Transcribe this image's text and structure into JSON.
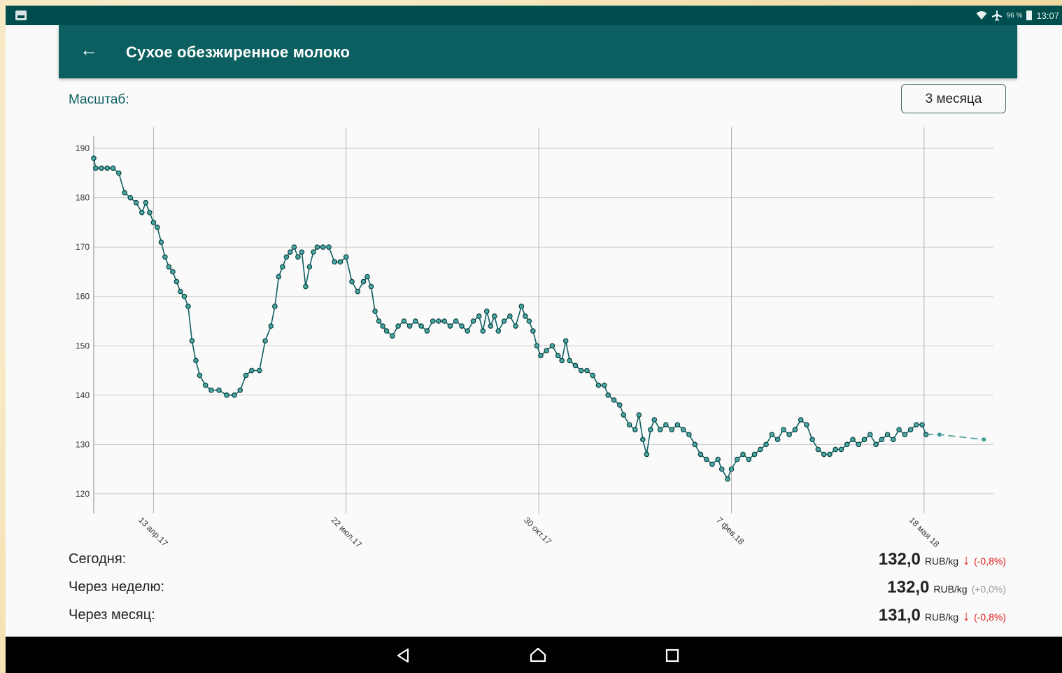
{
  "status_bar": {
    "battery_percent": "96 %",
    "time": "13:07",
    "icons": [
      "notification-icon",
      "wifi-icon",
      "airplane-icon",
      "battery-icon"
    ]
  },
  "app_bar": {
    "title": "Сухое обезжиренное молоко",
    "back_icon": "arrow-left-icon"
  },
  "scale": {
    "label": "Масштаб:",
    "selected": "3 месяца"
  },
  "chart_data": {
    "type": "line",
    "ylim": [
      118,
      192
    ],
    "yticks": [
      120,
      130,
      140,
      150,
      160,
      170,
      180,
      190
    ],
    "xticks": [
      {
        "label": "13 апр.17",
        "date": "2017-04-13"
      },
      {
        "label": "22 июл.17",
        "date": "2017-07-22"
      },
      {
        "label": "30 окт.17",
        "date": "2017-10-30"
      },
      {
        "label": "7 фев.18",
        "date": "2018-02-07"
      },
      {
        "label": "18 мая 18",
        "date": "2018-05-18"
      }
    ],
    "xlim": [
      "2017-03-13",
      "2018-06-23"
    ],
    "grid": true,
    "colors": {
      "line": "#0e5f60",
      "marker_fill": "#4aa9a4",
      "forecast": "#3c9c98"
    },
    "series": [
      {
        "points": [
          [
            "2017-03-13",
            188
          ],
          [
            "2017-03-14",
            186
          ],
          [
            "2017-03-17",
            186
          ],
          [
            "2017-03-20",
            186
          ],
          [
            "2017-03-23",
            186
          ],
          [
            "2017-03-26",
            185
          ],
          [
            "2017-03-29",
            181
          ],
          [
            "2017-04-01",
            180
          ],
          [
            "2017-04-04",
            179
          ],
          [
            "2017-04-07",
            177
          ],
          [
            "2017-04-09",
            179
          ],
          [
            "2017-04-11",
            177
          ],
          [
            "2017-04-13",
            175
          ],
          [
            "2017-04-15",
            174
          ],
          [
            "2017-04-17",
            171
          ],
          [
            "2017-04-19",
            168
          ],
          [
            "2017-04-21",
            166
          ],
          [
            "2017-04-23",
            165
          ],
          [
            "2017-04-25",
            163
          ],
          [
            "2017-04-27",
            161
          ],
          [
            "2017-04-29",
            160
          ],
          [
            "2017-05-01",
            158
          ],
          [
            "2017-05-03",
            151
          ],
          [
            "2017-05-05",
            147
          ],
          [
            "2017-05-07",
            144
          ],
          [
            "2017-05-10",
            142
          ],
          [
            "2017-05-13",
            141
          ],
          [
            "2017-05-17",
            141
          ],
          [
            "2017-05-21",
            140
          ],
          [
            "2017-05-25",
            140
          ],
          [
            "2017-05-28",
            141
          ],
          [
            "2017-05-31",
            144
          ],
          [
            "2017-06-03",
            145
          ],
          [
            "2017-06-07",
            145
          ],
          [
            "2017-06-10",
            151
          ],
          [
            "2017-06-13",
            154
          ],
          [
            "2017-06-15",
            158
          ],
          [
            "2017-06-17",
            164
          ],
          [
            "2017-06-19",
            166
          ],
          [
            "2017-06-21",
            168
          ],
          [
            "2017-06-23",
            169
          ],
          [
            "2017-06-25",
            170
          ],
          [
            "2017-06-27",
            168
          ],
          [
            "2017-06-29",
            169
          ],
          [
            "2017-07-01",
            162
          ],
          [
            "2017-07-03",
            166
          ],
          [
            "2017-07-05",
            169
          ],
          [
            "2017-07-07",
            170
          ],
          [
            "2017-07-10",
            170
          ],
          [
            "2017-07-13",
            170
          ],
          [
            "2017-07-16",
            167
          ],
          [
            "2017-07-19",
            167
          ],
          [
            "2017-07-22",
            168
          ],
          [
            "2017-07-25",
            163
          ],
          [
            "2017-07-28",
            161
          ],
          [
            "2017-07-31",
            163
          ],
          [
            "2017-08-02",
            164
          ],
          [
            "2017-08-04",
            162
          ],
          [
            "2017-08-06",
            157
          ],
          [
            "2017-08-08",
            155
          ],
          [
            "2017-08-10",
            154
          ],
          [
            "2017-08-12",
            153
          ],
          [
            "2017-08-15",
            152
          ],
          [
            "2017-08-18",
            154
          ],
          [
            "2017-08-21",
            155
          ],
          [
            "2017-08-24",
            154
          ],
          [
            "2017-08-27",
            155
          ],
          [
            "2017-08-30",
            154
          ],
          [
            "2017-09-02",
            153
          ],
          [
            "2017-09-05",
            155
          ],
          [
            "2017-09-08",
            155
          ],
          [
            "2017-09-11",
            155
          ],
          [
            "2017-09-14",
            154
          ],
          [
            "2017-09-17",
            155
          ],
          [
            "2017-09-20",
            154
          ],
          [
            "2017-09-23",
            153
          ],
          [
            "2017-09-26",
            155
          ],
          [
            "2017-09-29",
            156
          ],
          [
            "2017-10-01",
            153
          ],
          [
            "2017-10-03",
            157
          ],
          [
            "2017-10-05",
            154
          ],
          [
            "2017-10-07",
            156
          ],
          [
            "2017-10-09",
            153
          ],
          [
            "2017-10-12",
            155
          ],
          [
            "2017-10-15",
            156
          ],
          [
            "2017-10-18",
            154
          ],
          [
            "2017-10-21",
            158
          ],
          [
            "2017-10-23",
            156
          ],
          [
            "2017-10-25",
            155
          ],
          [
            "2017-10-27",
            153
          ],
          [
            "2017-10-29",
            150
          ],
          [
            "2017-10-31",
            148
          ],
          [
            "2017-11-03",
            149
          ],
          [
            "2017-11-06",
            150
          ],
          [
            "2017-11-09",
            148
          ],
          [
            "2017-11-11",
            147
          ],
          [
            "2017-11-13",
            151
          ],
          [
            "2017-11-15",
            147
          ],
          [
            "2017-11-18",
            146
          ],
          [
            "2017-11-21",
            145
          ],
          [
            "2017-11-24",
            145
          ],
          [
            "2017-11-27",
            144
          ],
          [
            "2017-11-30",
            142
          ],
          [
            "2017-12-03",
            142
          ],
          [
            "2017-12-05",
            140
          ],
          [
            "2017-12-08",
            139
          ],
          [
            "2017-12-11",
            138
          ],
          [
            "2017-12-13",
            136
          ],
          [
            "2017-12-16",
            134
          ],
          [
            "2017-12-19",
            133
          ],
          [
            "2017-12-21",
            136
          ],
          [
            "2017-12-23",
            131
          ],
          [
            "2017-12-25",
            128
          ],
          [
            "2017-12-27",
            133
          ],
          [
            "2017-12-29",
            135
          ],
          [
            "2018-01-01",
            133
          ],
          [
            "2018-01-04",
            134
          ],
          [
            "2018-01-07",
            133
          ],
          [
            "2018-01-10",
            134
          ],
          [
            "2018-01-13",
            133
          ],
          [
            "2018-01-16",
            132
          ],
          [
            "2018-01-19",
            130
          ],
          [
            "2018-01-22",
            128
          ],
          [
            "2018-01-25",
            127
          ],
          [
            "2018-01-28",
            126
          ],
          [
            "2018-01-31",
            127
          ],
          [
            "2018-02-02",
            125
          ],
          [
            "2018-02-05",
            123
          ],
          [
            "2018-02-07",
            125
          ],
          [
            "2018-02-10",
            127
          ],
          [
            "2018-02-13",
            128
          ],
          [
            "2018-02-16",
            127
          ],
          [
            "2018-02-19",
            128
          ],
          [
            "2018-02-22",
            129
          ],
          [
            "2018-02-25",
            130
          ],
          [
            "2018-02-28",
            132
          ],
          [
            "2018-03-03",
            131
          ],
          [
            "2018-03-06",
            133
          ],
          [
            "2018-03-09",
            132
          ],
          [
            "2018-03-12",
            133
          ],
          [
            "2018-03-15",
            135
          ],
          [
            "2018-03-18",
            134
          ],
          [
            "2018-03-21",
            131
          ],
          [
            "2018-03-24",
            129
          ],
          [
            "2018-03-27",
            128
          ],
          [
            "2018-03-30",
            128
          ],
          [
            "2018-04-02",
            129
          ],
          [
            "2018-04-05",
            129
          ],
          [
            "2018-04-08",
            130
          ],
          [
            "2018-04-11",
            131
          ],
          [
            "2018-04-14",
            130
          ],
          [
            "2018-04-17",
            131
          ],
          [
            "2018-04-20",
            132
          ],
          [
            "2018-04-23",
            130
          ],
          [
            "2018-04-26",
            131
          ],
          [
            "2018-04-29",
            132
          ],
          [
            "2018-05-02",
            131
          ],
          [
            "2018-05-05",
            133
          ],
          [
            "2018-05-08",
            132
          ],
          [
            "2018-05-11",
            133
          ],
          [
            "2018-05-14",
            134
          ],
          [
            "2018-05-17",
            134
          ],
          [
            "2018-05-19",
            132
          ]
        ]
      },
      {
        "name": "forecast",
        "dashed": true,
        "points": [
          [
            "2018-05-19",
            132
          ],
          [
            "2018-05-26",
            132
          ],
          [
            "2018-06-18",
            131
          ]
        ]
      }
    ]
  },
  "summary": {
    "rows": [
      {
        "label": "Сегодня:",
        "value": "132,0",
        "unit": "RUB/kg",
        "change": "(-0,8%)",
        "trend": "down"
      },
      {
        "label": "Через неделю:",
        "value": "132,0",
        "unit": "RUB/kg",
        "change": "(+0,0%)",
        "trend": "none"
      },
      {
        "label": "Через месяц:",
        "value": "131,0",
        "unit": "RUB/kg",
        "change": "(-0,8%)",
        "trend": "down"
      }
    ]
  },
  "nav_bar": {
    "buttons": [
      "back-triangle-icon",
      "home-icon",
      "recents-icon"
    ]
  }
}
